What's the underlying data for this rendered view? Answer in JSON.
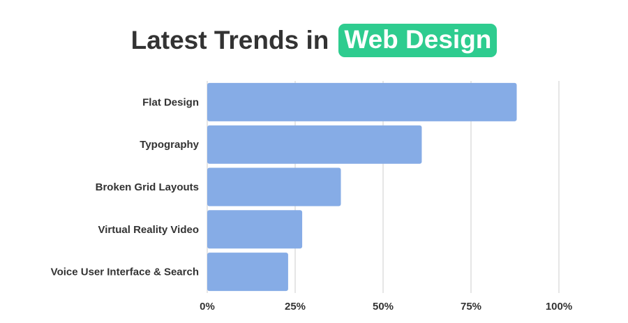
{
  "title": {
    "plain": "Latest Trends in",
    "highlight": "Web Design"
  },
  "colors": {
    "bar": "#86ace6",
    "highlight_bg": "#2ecc8f",
    "text": "#333333",
    "grid": "#dddddd"
  },
  "chart_data": {
    "type": "bar",
    "orientation": "horizontal",
    "title": "Latest Trends in Web Design",
    "categories": [
      "Flat Design",
      "Typography",
      "Broken Grid Layouts",
      "Virtual Reality Video",
      "Voice User Interface & Search"
    ],
    "values": [
      88,
      61,
      38,
      27,
      23
    ],
    "unit": "%",
    "xlim": [
      0,
      100
    ],
    "xticks": [
      0,
      25,
      50,
      75,
      100
    ],
    "xtick_labels": [
      "0%",
      "25%",
      "50%",
      "75%",
      "100%"
    ],
    "grid": true,
    "legend": "none"
  }
}
